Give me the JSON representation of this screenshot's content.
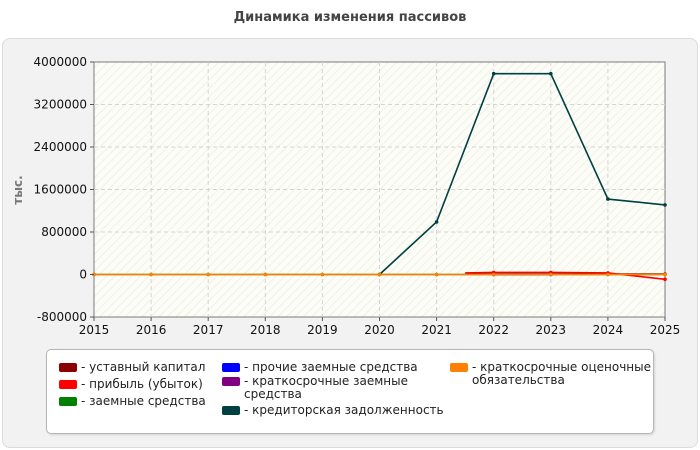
{
  "chart_data": {
    "type": "line",
    "title": "Динамика изменения пассивов",
    "ylabel": "тыс.",
    "xlabel": "",
    "x": [
      2015,
      2016,
      2017,
      2018,
      2019,
      2020,
      2021,
      2022,
      2023,
      2024,
      2025
    ],
    "xlim": [
      2015,
      2025
    ],
    "ylim": [
      -800000,
      4000000
    ],
    "yticks": [
      -800000,
      0,
      800000,
      1600000,
      2400000,
      3200000,
      4000000
    ],
    "y_tick_labels": [
      "-800000",
      "0",
      "800000",
      "1600000",
      "2400000",
      "3200000",
      "4000000"
    ],
    "x_tick_labels": [
      "2015",
      "2016",
      "2017",
      "2018",
      "2019",
      "2020",
      "2021",
      "2022",
      "2023",
      "2024",
      "2025"
    ],
    "grid": true,
    "legend_position": "bottom",
    "series": [
      {
        "name": "- уставный капитал",
        "color": "#8b0000",
        "x": [
          2021.5,
          2022,
          2023,
          2024,
          2025
        ],
        "values": [
          10000,
          10000,
          10000,
          10000,
          10000
        ]
      },
      {
        "name": "- прибыль (убыток)",
        "color": "#ff0000",
        "x": [
          2021.5,
          2022,
          2023,
          2024,
          2025
        ],
        "values": [
          30000,
          40000,
          40000,
          30000,
          -90000
        ]
      },
      {
        "name": "- заемные средства",
        "color": "#008000",
        "x": [
          2015,
          2016,
          2017,
          2018,
          2019,
          2020,
          2021,
          2022,
          2023,
          2024,
          2025
        ],
        "values": [
          0,
          0,
          0,
          0,
          0,
          0,
          0,
          0,
          0,
          0,
          0
        ]
      },
      {
        "name": "- прочие заемные средства",
        "color": "#0000ff",
        "x": [
          2022,
          2023
        ],
        "values": [
          0,
          0
        ]
      },
      {
        "name": "- краткосрочные заемные средства",
        "color": "#800080",
        "x": [
          2022,
          2023
        ],
        "values": [
          0,
          0
        ]
      },
      {
        "name": "- кредиторская задолженность",
        "color": "#004040",
        "x": [
          2020,
          2021,
          2022,
          2023,
          2024,
          2025
        ],
        "values": [
          0,
          990000,
          3780000,
          3780000,
          1420000,
          1310000
        ]
      },
      {
        "name": "- краткосрочные оценочные обязательства",
        "color": "#ff8000",
        "x": [
          2015,
          2016,
          2017,
          2018,
          2019,
          2020,
          2021,
          2022,
          2023,
          2024,
          2025
        ],
        "values": [
          0,
          0,
          0,
          0,
          0,
          0,
          0,
          0,
          0,
          0,
          0
        ]
      }
    ]
  },
  "legend_labels_display": [
    [
      "- уставный капитал"
    ],
    [
      "- прибыль (убыток)"
    ],
    [
      "- заемные средства"
    ],
    [
      "- прочие заемные средства"
    ],
    [
      "- краткосрочные заемные",
      "средства"
    ],
    [
      "- кредиторская задолженность"
    ],
    [
      "- краткосрочные оценочные",
      "обязательства"
    ]
  ]
}
